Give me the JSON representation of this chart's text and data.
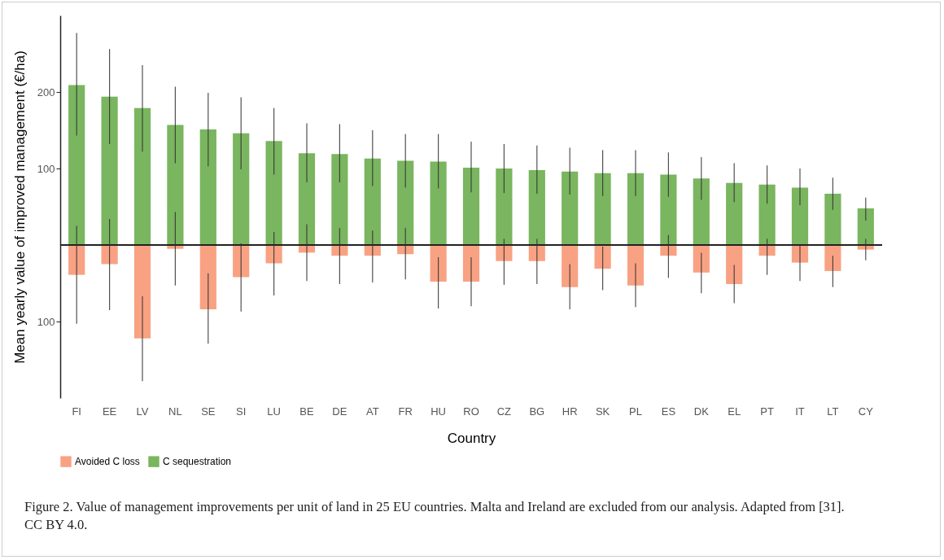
{
  "chart_data": {
    "type": "bar",
    "stacked": true,
    "xlabel": "Country",
    "ylabel": "Mean yearly value of improved management (€/ha)",
    "categories": [
      "FI",
      "EE",
      "LV",
      "NL",
      "SE",
      "SI",
      "LU",
      "BE",
      "DE",
      "AT",
      "FR",
      "HU",
      "RO",
      "CZ",
      "BG",
      "HR",
      "SK",
      "PL",
      "ES",
      "DK",
      "EL",
      "PT",
      "IT",
      "LT",
      "CY"
    ],
    "series": [
      {
        "name": "Avoided C loss",
        "color": "#f8a283",
        "values": [
          -39,
          -25,
          -122,
          -5,
          -84,
          -42,
          -24,
          -10,
          -14,
          -14,
          -12,
          -48,
          -48,
          -21,
          -21,
          -55,
          -31,
          -53,
          -14,
          -36,
          -51,
          -14,
          -23,
          -34,
          -6
        ],
        "errors": [
          [
            -103,
            25
          ],
          [
            -85,
            34
          ],
          [
            -178,
            -67
          ],
          [
            -53,
            43
          ],
          [
            -129,
            -37
          ],
          [
            -87,
            2
          ],
          [
            -66,
            17
          ],
          [
            -47,
            27
          ],
          [
            -51,
            22
          ],
          [
            -49,
            19
          ],
          [
            -45,
            22
          ],
          [
            -83,
            -16
          ],
          [
            -80,
            -16
          ],
          [
            -52,
            8
          ],
          [
            -51,
            8
          ],
          [
            -84,
            -25
          ],
          [
            -59,
            -2
          ],
          [
            -81,
            -24
          ],
          [
            -43,
            13
          ],
          [
            -63,
            -10
          ],
          [
            -76,
            -26
          ],
          [
            -39,
            8
          ],
          [
            -47,
            0
          ],
          [
            -55,
            -14
          ],
          [
            -20,
            8
          ]
        ]
      },
      {
        "name": "C sequestration",
        "color": "#7ab55f",
        "values": [
          209,
          194,
          179,
          157,
          151,
          146,
          136,
          120,
          119,
          113,
          110,
          109,
          101,
          100,
          98,
          96,
          94,
          94,
          92,
          87,
          81,
          79,
          75,
          67,
          48
        ],
        "errors": [
          [
            143,
            277
          ],
          [
            132,
            256
          ],
          [
            122,
            235
          ],
          [
            107,
            207
          ],
          [
            103,
            199
          ],
          [
            99,
            193
          ],
          [
            92,
            179
          ],
          [
            82,
            159
          ],
          [
            82,
            158
          ],
          [
            77,
            150
          ],
          [
            75,
            145
          ],
          [
            74,
            145
          ],
          [
            69,
            135
          ],
          [
            68,
            132
          ],
          [
            67,
            130
          ],
          [
            66,
            127
          ],
          [
            64,
            124
          ],
          [
            64,
            124
          ],
          [
            63,
            121
          ],
          [
            59,
            115
          ],
          [
            56,
            107
          ],
          [
            54,
            104
          ],
          [
            52,
            100
          ],
          [
            46,
            88
          ],
          [
            32,
            62
          ]
        ]
      }
    ],
    "ylim": [
      -200,
      300
    ],
    "yticks": [
      {
        "value": -100,
        "label": "100"
      },
      100,
      200
    ],
    "ref_lines": [
      {
        "axis": "y",
        "value": 0,
        "color": "#222222"
      }
    ],
    "grid": false,
    "legend": "bottom",
    "annotations": [
      "Figure 2. Value of management improvements per unit of land in 25 EU countries. Malta and Ireland are excluded from our analysis. Adapted from [31]. CC BY 4.0."
    ]
  }
}
